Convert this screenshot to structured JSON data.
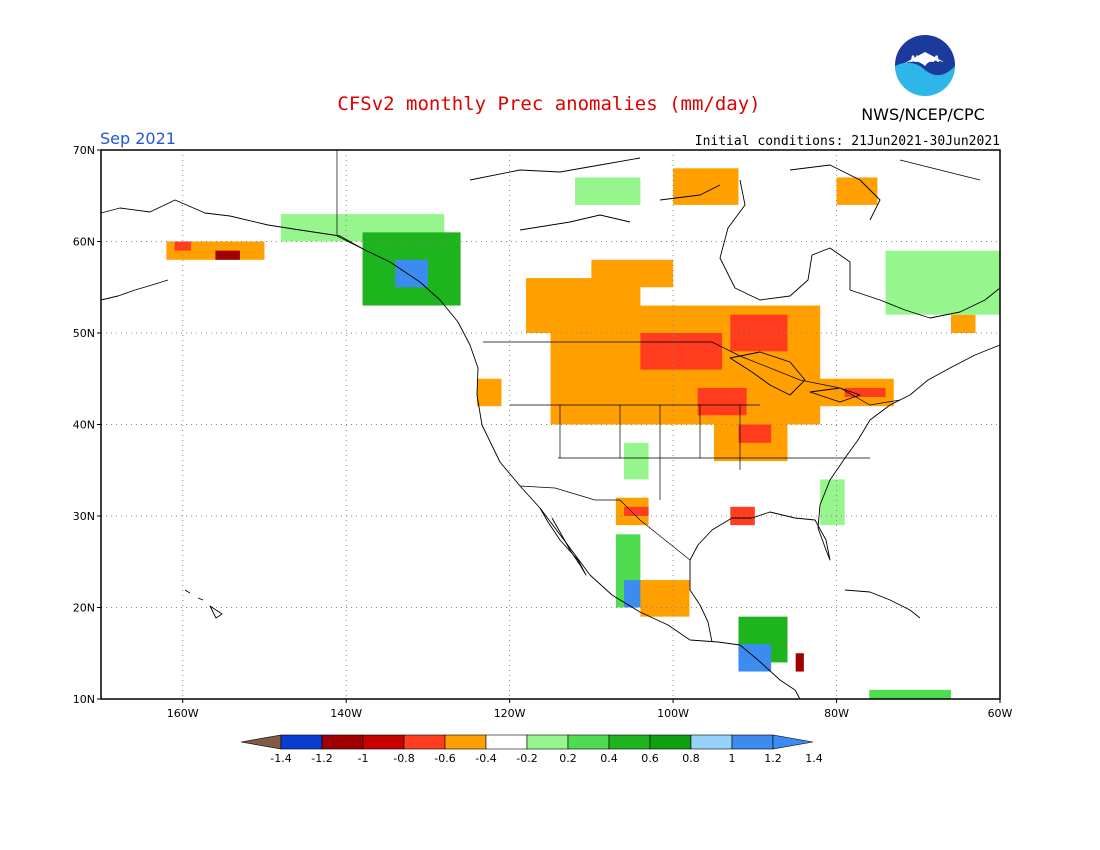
{
  "title": "CFSv2 monthly Prec anomalies (mm/day)",
  "agency": "NWS/NCEP/CPC",
  "logo_text": "NOAA",
  "valid_month": "Sep 2021",
  "initial_conditions": "Initial conditions: 21Jun2021-30Jun2021",
  "map": {
    "lon_range": [
      -170,
      -60
    ],
    "lat_range": [
      10,
      70
    ],
    "lat_ticks": [
      "70N",
      "60N",
      "50N",
      "40N",
      "30N",
      "20N",
      "10N"
    ],
    "lon_ticks": [
      "160W",
      "140W",
      "120W",
      "100W",
      "80W",
      "60W"
    ],
    "anomaly_regions": [
      {
        "name": "northern-plains-great-lakes-dry",
        "lon": [
          -115,
          -82
        ],
        "lat": [
          40,
          53
        ],
        "anomaly": -0.4
      },
      {
        "name": "north-dakota-minnesota-core",
        "lon": [
          -104,
          -94
        ],
        "lat": [
          46,
          50
        ],
        "anomaly": -0.6
      },
      {
        "name": "ontario-core",
        "lon": [
          -93,
          -86
        ],
        "lat": [
          48,
          52
        ],
        "anomaly": -0.6
      },
      {
        "name": "iowa-core",
        "lon": [
          -97,
          -91
        ],
        "lat": [
          41,
          44
        ],
        "anomaly": -0.6
      },
      {
        "name": "central-mississippi-dry",
        "lon": [
          -95,
          -86
        ],
        "lat": [
          36,
          41
        ],
        "anomaly": -0.3
      },
      {
        "name": "indiana-core",
        "lon": [
          -92,
          -88
        ],
        "lat": [
          38,
          40
        ],
        "anomaly": -0.5
      },
      {
        "name": "saskatchewan-dry",
        "lon": [
          -118,
          -104
        ],
        "lat": [
          50,
          56
        ],
        "anomaly": -0.3
      },
      {
        "name": "northwest-us-dry",
        "lon": [
          -124,
          -121
        ],
        "lat": [
          42,
          45
        ],
        "anomaly": -0.3
      },
      {
        "name": "northeast-us-dry",
        "lon": [
          -84,
          -73
        ],
        "lat": [
          42,
          45
        ],
        "anomaly": -0.3
      },
      {
        "name": "new-york-core",
        "lon": [
          -79,
          -74
        ],
        "lat": [
          43,
          44
        ],
        "anomaly": -0.5
      },
      {
        "name": "gulf-coast-dry",
        "lon": [
          -93,
          -90
        ],
        "lat": [
          29,
          31
        ],
        "anomaly": -0.6
      },
      {
        "name": "texas-dry",
        "lon": [
          -107,
          -103
        ],
        "lat": [
          29,
          32
        ],
        "anomaly": -0.3
      },
      {
        "name": "texas-core",
        "lon": [
          -106,
          -103
        ],
        "lat": [
          30,
          31
        ],
        "anomaly": -0.5
      },
      {
        "name": "mexico-dry",
        "lon": [
          -104,
          -98
        ],
        "lat": [
          19,
          23
        ],
        "anomaly": -0.4
      },
      {
        "name": "hudson-bay-dry",
        "lon": [
          -100,
          -92
        ],
        "lat": [
          64,
          68
        ],
        "anomaly": -0.3
      },
      {
        "name": "baffin-dry",
        "lon": [
          -80,
          -75
        ],
        "lat": [
          64,
          67
        ],
        "anomaly": -0.3
      },
      {
        "name": "nunavut-dry",
        "lon": [
          -110,
          -100
        ],
        "lat": [
          55,
          58
        ],
        "anomaly": -0.3
      },
      {
        "name": "alaska-dry",
        "lon": [
          -162,
          -150
        ],
        "lat": [
          58,
          60
        ],
        "anomaly": -0.4
      },
      {
        "name": "alaska-core",
        "lon": [
          -156,
          -153
        ],
        "lat": [
          58,
          59
        ],
        "anomaly": -0.9
      },
      {
        "name": "alaska-west-core",
        "lon": [
          -161,
          -159
        ],
        "lat": [
          59,
          60
        ],
        "anomaly": -0.6
      },
      {
        "name": "labrador-dry",
        "lon": [
          -66,
          -63
        ],
        "lat": [
          50,
          52
        ],
        "anomaly": -0.3
      },
      {
        "name": "central-america-red",
        "lon": [
          -85,
          -84
        ],
        "lat": [
          13,
          15
        ],
        "anomaly": -1.0
      },
      {
        "name": "yukon-wet",
        "lon": [
          -148,
          -128
        ],
        "lat": [
          60,
          63
        ],
        "anomaly": 0.3
      },
      {
        "name": "bc-coast-wet",
        "lon": [
          -138,
          -126
        ],
        "lat": [
          53,
          61
        ],
        "anomaly": 0.6
      },
      {
        "name": "bc-coast-core",
        "lon": [
          -134,
          -130
        ],
        "lat": [
          55,
          58
        ],
        "anomaly": 1.2
      },
      {
        "name": "nunavut-north-wet",
        "lon": [
          -112,
          -104
        ],
        "lat": [
          64,
          67
        ],
        "anomaly": 0.3
      },
      {
        "name": "quebec-labrador-wet",
        "lon": [
          -74,
          -60
        ],
        "lat": [
          52,
          59
        ],
        "anomaly": 0.3
      },
      {
        "name": "four-corners-wet",
        "lon": [
          -106,
          -103
        ],
        "lat": [
          34,
          38
        ],
        "anomaly": 0.3
      },
      {
        "name": "mexico-west-wet",
        "lon": [
          -107,
          -104
        ],
        "lat": [
          20,
          28
        ],
        "anomaly": 0.4
      },
      {
        "name": "mexico-coast-blue",
        "lon": [
          -106,
          -104
        ],
        "lat": [
          20,
          23
        ],
        "anomaly": 1.2
      },
      {
        "name": "central-america-wet",
        "lon": [
          -92,
          -86
        ],
        "lat": [
          14,
          19
        ],
        "anomaly": 0.7
      },
      {
        "name": "central-america-blue",
        "lon": [
          -92,
          -88
        ],
        "lat": [
          13,
          16
        ],
        "anomaly": 1.3
      },
      {
        "name": "caribbean-wet",
        "lon": [
          -76,
          -66
        ],
        "lat": [
          10,
          11
        ],
        "anomaly": 0.5
      },
      {
        "name": "southeast-wet",
        "lon": [
          -82,
          -79
        ],
        "lat": [
          29,
          34
        ],
        "anomaly": 0.3
      }
    ]
  },
  "colorbar": {
    "labels": [
      "-1.4",
      "-1.2",
      "-1",
      "-0.8",
      "-0.6",
      "-0.4",
      "-0.2",
      "0.2",
      "0.4",
      "0.6",
      "0.8",
      "1",
      "1.2",
      "1.4"
    ],
    "colors": [
      "#825a46",
      "#0a3cd2",
      "#a00000",
      "#c80000",
      "#ff3c1e",
      "#ffa000",
      "#ffffff",
      "#96f58c",
      "#50dc50",
      "#1eb41e",
      "#0fa00f",
      "#96d2fa",
      "#3c8cf0"
    ],
    "under_color": "#825a46",
    "over_color": "#3c8cf0"
  }
}
